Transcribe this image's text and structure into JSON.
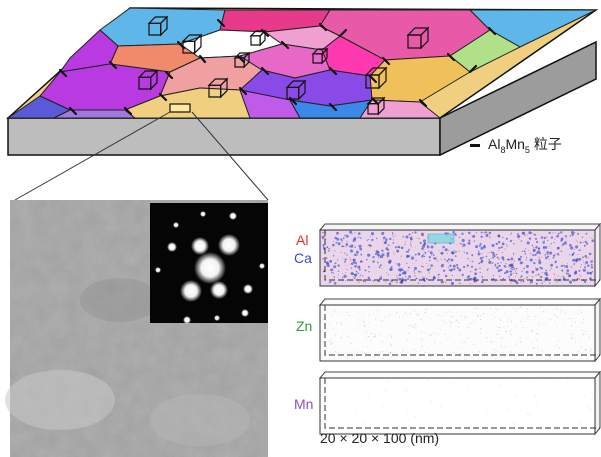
{
  "legend": {
    "formula_base": "Al",
    "sub1": "8",
    "mid": "Mn",
    "sub2": "5",
    "suffix": " 粒子"
  },
  "element_maps": [
    {
      "element": "Al",
      "color": "#e0312c"
    },
    {
      "element": "Ca",
      "color": "#3f49c8"
    },
    {
      "element": "Zn",
      "color": "#2f9a3a"
    },
    {
      "element": "Mn",
      "color": "#8a4fc9"
    }
  ],
  "dimensions": "20 × 20 × 100 (nm)",
  "grain_colors": [
    "#5fb6e8",
    "#f08a6a",
    "#f0a0d0",
    "#e83a8a",
    "#b83ae0",
    "#f0a0a0",
    "#ffffff",
    "#e85aa8",
    "#f0c05a",
    "#ff3ab0",
    "#8a4ae8",
    "#5a5ad8",
    "#f0d080",
    "#c05ae8",
    "#3a88e8",
    "#b0e088",
    "#a078e0",
    "#e868c8"
  ]
}
